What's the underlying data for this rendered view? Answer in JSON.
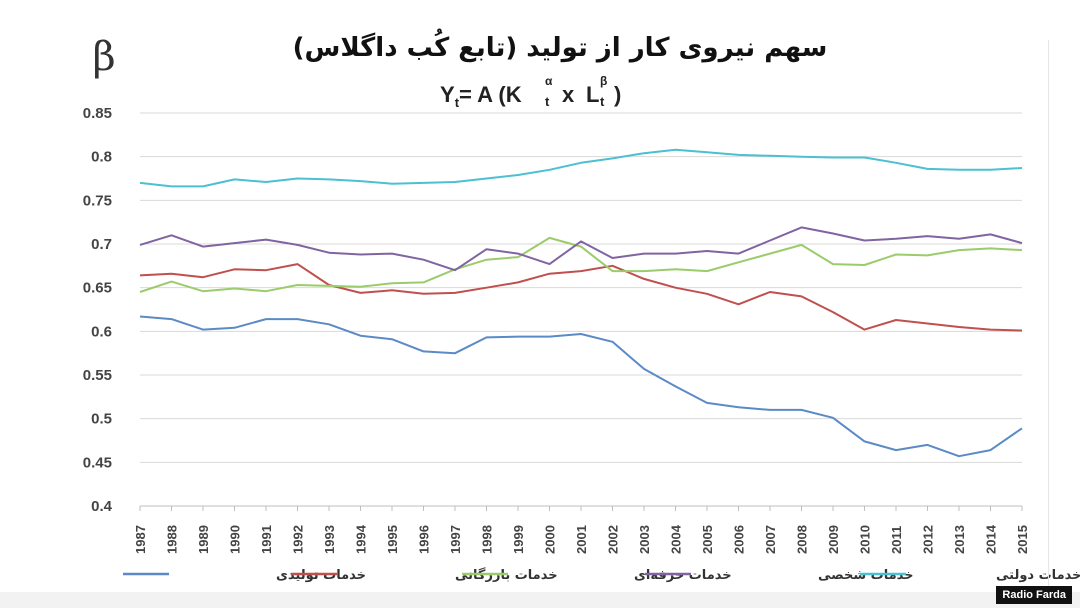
{
  "chart_data": {
    "type": "line",
    "title": "سهم نیروی کار از تولید (تابع کُب داگلاس)",
    "formula": {
      "Y": "Y",
      "t": "t",
      "eq": "= A (",
      "K": "K",
      "alpha": "α",
      "x": "x",
      "L": "L",
      "beta": "β",
      "close": ")"
    },
    "ylabel": "β",
    "ylim": [
      0.4,
      0.85
    ],
    "yticks": [
      "0.4",
      "0.45",
      "0.5",
      "0.55",
      "0.6",
      "0.65",
      "0.7",
      "0.75",
      "0.8",
      "0.85"
    ],
    "x": [
      "1987",
      "1988",
      "1989",
      "1990",
      "1991",
      "1992",
      "1993",
      "1994",
      "1995",
      "1996",
      "1997",
      "1998",
      "1999",
      "2000",
      "2001",
      "2002",
      "2003",
      "2004",
      "2005",
      "2006",
      "2007",
      "2008",
      "2009",
      "2010",
      "2011",
      "2012",
      "2013",
      "2014",
      "2015"
    ],
    "grid": true,
    "legend_position": "bottom",
    "series": [
      {
        "name": "خدمات تولیدی",
        "color": "#5b8ac6",
        "values": [
          0.617,
          0.614,
          0.602,
          0.604,
          0.614,
          0.614,
          0.608,
          0.595,
          0.591,
          0.577,
          0.575,
          0.593,
          0.594,
          0.594,
          0.597,
          0.588,
          0.557,
          0.537,
          0.518,
          0.513,
          0.51,
          0.51,
          0.501,
          0.474,
          0.464,
          0.47,
          0.457,
          0.464,
          0.489
        ]
      },
      {
        "name": "خدمات بازرگانی",
        "color": "#c0504d",
        "values": [
          0.664,
          0.666,
          0.662,
          0.671,
          0.67,
          0.677,
          0.653,
          0.644,
          0.647,
          0.643,
          0.644,
          0.65,
          0.656,
          0.666,
          0.669,
          0.675,
          0.66,
          0.65,
          0.643,
          0.631,
          0.645,
          0.64,
          0.622,
          0.602,
          0.613,
          0.609,
          0.605,
          0.602,
          0.601
        ]
      },
      {
        "name": "خدمات حرفه‌ای",
        "color": "#9bcb6b",
        "values": [
          0.645,
          0.657,
          0.646,
          0.649,
          0.646,
          0.653,
          0.652,
          0.651,
          0.655,
          0.656,
          0.671,
          0.682,
          0.685,
          0.707,
          0.697,
          0.669,
          0.669,
          0.671,
          0.669,
          0.679,
          0.689,
          0.699,
          0.677,
          0.676,
          0.688,
          0.687,
          0.693,
          0.695,
          0.693
        ]
      },
      {
        "name": "خدمات شخصی",
        "color": "#8064a2",
        "values": [
          0.699,
          0.71,
          0.697,
          0.701,
          0.705,
          0.699,
          0.69,
          0.688,
          0.689,
          0.682,
          0.67,
          0.694,
          0.689,
          0.677,
          0.703,
          0.684,
          0.689,
          0.689,
          0.692,
          0.689,
          0.704,
          0.719,
          0.712,
          0.704,
          0.706,
          0.709,
          0.706,
          0.711,
          0.701
        ]
      },
      {
        "name": "خدمات دولتی",
        "color": "#4bc0d0",
        "values": [
          0.77,
          0.766,
          0.766,
          0.774,
          0.771,
          0.775,
          0.774,
          0.772,
          0.769,
          0.77,
          0.771,
          0.775,
          0.779,
          0.785,
          0.793,
          0.798,
          0.804,
          0.808,
          0.805,
          0.802,
          0.801,
          0.8,
          0.799,
          0.799,
          0.793,
          0.786,
          0.785,
          0.785,
          0.787
        ]
      }
    ]
  },
  "watermark": "Radio Farda"
}
